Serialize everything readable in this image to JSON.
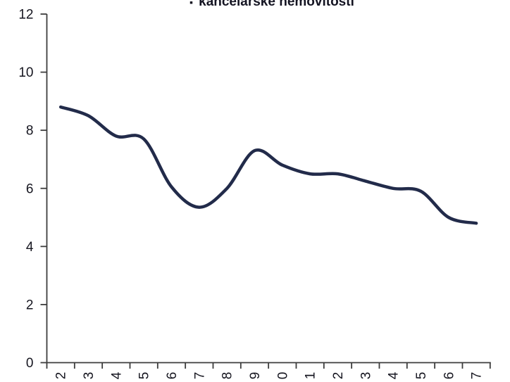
{
  "title": {
    "bullet": "▪",
    "text": "kancelářské nemovitosti"
  },
  "chart_data": {
    "type": "line",
    "title": "kancelářské nemovitosti",
    "legend_position": "top",
    "smooth": true,
    "markers": false,
    "grid": false,
    "categories": [
      "2",
      "3",
      "4",
      "5",
      "6",
      "7",
      "8",
      "9",
      "0",
      "1",
      "2",
      "3",
      "4",
      "5",
      "6",
      "7"
    ],
    "values": [
      8.8,
      8.5,
      7.8,
      7.7,
      6.05,
      5.35,
      6.0,
      7.3,
      6.8,
      6.5,
      6.5,
      6.25,
      6.0,
      5.9,
      5.0,
      4.8
    ],
    "xlabel": "",
    "ylabel": "",
    "ylim": [
      0,
      12
    ],
    "y_ticks": [
      0,
      2,
      4,
      6,
      8,
      10,
      12
    ],
    "x_labels_rotated_degrees": -90,
    "line_color": "#222B4A",
    "axis_color": "#3d3d3d",
    "label_color": "#161620"
  }
}
